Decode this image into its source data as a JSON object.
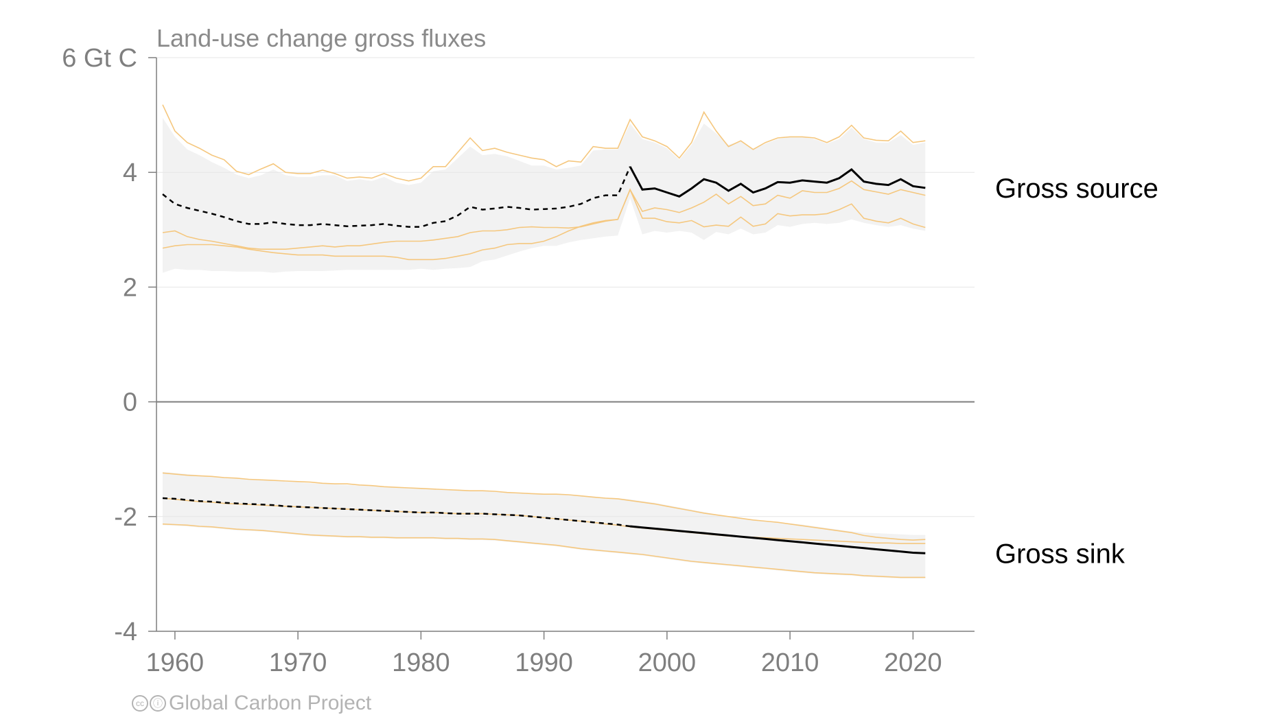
{
  "chart_data": {
    "type": "line",
    "title": "Land-use change gross fluxes",
    "ylabel": "",
    "xlabel": "",
    "ylim": [
      -4,
      6
    ],
    "xlim": [
      1958.5,
      2025
    ],
    "xticks": [
      1960,
      1970,
      1980,
      1990,
      2000,
      2010,
      2020
    ],
    "ytick_labels": [
      {
        "value": 6,
        "label": "6 Gt C"
      },
      {
        "value": 4,
        "label": "4"
      },
      {
        "value": 2,
        "label": "2"
      },
      {
        "value": 0,
        "label": "0"
      },
      {
        "value": -2,
        "label": "-2"
      },
      {
        "value": -4,
        "label": "-4"
      }
    ],
    "grid": true,
    "colors": {
      "mean": "#000000",
      "model": "#f5c77e",
      "band": "#f2f2f2",
      "axis": "#7f7f7f",
      "grid": "#e6e6e6"
    },
    "projection_until": 1997,
    "series": [
      {
        "name": "Gross source",
        "x_start": 1959,
        "mean": [
          3.62,
          3.45,
          3.38,
          3.33,
          3.28,
          3.22,
          3.15,
          3.1,
          3.1,
          3.13,
          3.1,
          3.08,
          3.08,
          3.1,
          3.08,
          3.06,
          3.07,
          3.08,
          3.1,
          3.07,
          3.05,
          3.05,
          3.12,
          3.15,
          3.25,
          3.4,
          3.35,
          3.37,
          3.4,
          3.38,
          3.35,
          3.36,
          3.37,
          3.4,
          3.45,
          3.55,
          3.6,
          3.6,
          4.1,
          3.7,
          3.72,
          3.65,
          3.58,
          3.72,
          3.88,
          3.82,
          3.68,
          3.8,
          3.65,
          3.72,
          3.83,
          3.82,
          3.86,
          3.84,
          3.82,
          3.9,
          4.05,
          3.84,
          3.8,
          3.78,
          3.88,
          3.76,
          3.73
        ],
        "band_upper": [
          4.95,
          4.62,
          4.4,
          4.3,
          4.18,
          4.08,
          3.96,
          3.9,
          3.95,
          4.05,
          3.95,
          3.92,
          3.92,
          3.95,
          3.95,
          3.85,
          3.88,
          3.85,
          3.92,
          3.82,
          3.78,
          3.82,
          4.02,
          4.05,
          4.25,
          4.45,
          4.3,
          4.32,
          4.28,
          4.2,
          4.12,
          4.12,
          4.05,
          4.08,
          4.12,
          4.38,
          4.4,
          4.4,
          4.85,
          4.58,
          4.52,
          4.42,
          4.22,
          4.48,
          4.85,
          4.68,
          4.48,
          4.55,
          4.4,
          4.5,
          4.58,
          4.62,
          4.62,
          4.58,
          4.5,
          4.58,
          4.78,
          4.58,
          4.52,
          4.52,
          4.65,
          4.48,
          4.52
        ],
        "band_lower": [
          2.25,
          2.32,
          2.3,
          2.3,
          2.28,
          2.28,
          2.27,
          2.27,
          2.27,
          2.25,
          2.27,
          2.28,
          2.28,
          2.28,
          2.29,
          2.3,
          2.3,
          2.3,
          2.3,
          2.3,
          2.3,
          2.32,
          2.3,
          2.32,
          2.33,
          2.35,
          2.45,
          2.48,
          2.55,
          2.62,
          2.68,
          2.72,
          2.72,
          2.78,
          2.82,
          2.85,
          2.88,
          2.9,
          3.55,
          2.92,
          2.98,
          2.95,
          2.98,
          2.95,
          2.82,
          2.96,
          2.92,
          3.02,
          2.92,
          2.95,
          3.08,
          3.05,
          3.1,
          3.12,
          3.1,
          3.12,
          3.18,
          3.12,
          3.08,
          3.05,
          3.08,
          3.02,
          2.98
        ],
        "models": [
          [
            5.18,
            4.72,
            4.52,
            4.42,
            4.3,
            4.22,
            4.02,
            3.96,
            4.06,
            4.15,
            4.0,
            3.98,
            3.98,
            4.04,
            3.98,
            3.9,
            3.92,
            3.9,
            3.98,
            3.9,
            3.85,
            3.9,
            4.1,
            4.1,
            4.35,
            4.6,
            4.38,
            4.42,
            4.35,
            4.3,
            4.25,
            4.22,
            4.1,
            4.2,
            4.18,
            4.45,
            4.42,
            4.42,
            4.92,
            4.62,
            4.55,
            4.45,
            4.25,
            4.52,
            5.05,
            4.72,
            4.45,
            4.55,
            4.4,
            4.52,
            4.6,
            4.62,
            4.62,
            4.6,
            4.52,
            4.62,
            4.82,
            4.6,
            4.56,
            4.55,
            4.72,
            4.52,
            4.55
          ],
          [
            2.95,
            2.98,
            2.88,
            2.83,
            2.8,
            2.76,
            2.72,
            2.68,
            2.66,
            2.66,
            2.66,
            2.68,
            2.7,
            2.72,
            2.7,
            2.72,
            2.72,
            2.75,
            2.78,
            2.8,
            2.8,
            2.8,
            2.82,
            2.85,
            2.88,
            2.95,
            2.98,
            2.98,
            3.0,
            3.04,
            3.05,
            3.04,
            3.04,
            3.03,
            3.05,
            3.1,
            3.15,
            3.18,
            3.7,
            3.32,
            3.38,
            3.35,
            3.3,
            3.38,
            3.48,
            3.62,
            3.45,
            3.58,
            3.42,
            3.45,
            3.6,
            3.55,
            3.68,
            3.65,
            3.65,
            3.72,
            3.85,
            3.7,
            3.66,
            3.62,
            3.7,
            3.65,
            3.6
          ],
          [
            2.68,
            2.72,
            2.74,
            2.74,
            2.74,
            2.72,
            2.7,
            2.66,
            2.63,
            2.6,
            2.58,
            2.56,
            2.56,
            2.56,
            2.54,
            2.54,
            2.54,
            2.54,
            2.54,
            2.52,
            2.48,
            2.48,
            2.48,
            2.5,
            2.54,
            2.58,
            2.65,
            2.68,
            2.74,
            2.76,
            2.76,
            2.8,
            2.88,
            2.98,
            3.06,
            3.12,
            3.16,
            3.18,
            3.7,
            3.2,
            3.2,
            3.14,
            3.12,
            3.16,
            3.05,
            3.08,
            3.06,
            3.22,
            3.06,
            3.1,
            3.28,
            3.24,
            3.26,
            3.26,
            3.28,
            3.35,
            3.45,
            3.2,
            3.15,
            3.12,
            3.2,
            3.1,
            3.04
          ]
        ]
      },
      {
        "name": "Gross sink",
        "x_start": 1959,
        "mean": [
          -1.68,
          -1.69,
          -1.71,
          -1.73,
          -1.74,
          -1.76,
          -1.77,
          -1.78,
          -1.79,
          -1.8,
          -1.82,
          -1.83,
          -1.84,
          -1.85,
          -1.86,
          -1.87,
          -1.88,
          -1.89,
          -1.9,
          -1.91,
          -1.92,
          -1.93,
          -1.93,
          -1.94,
          -1.95,
          -1.95,
          -1.95,
          -1.96,
          -1.97,
          -1.98,
          -2.0,
          -2.02,
          -2.04,
          -2.06,
          -2.08,
          -2.1,
          -2.12,
          -2.14,
          -2.17,
          -2.19,
          -2.21,
          -2.23,
          -2.25,
          -2.27,
          -2.29,
          -2.31,
          -2.33,
          -2.35,
          -2.37,
          -2.39,
          -2.41,
          -2.43,
          -2.45,
          -2.47,
          -2.49,
          -2.51,
          -2.53,
          -2.55,
          -2.57,
          -2.59,
          -2.61,
          -2.63,
          -2.64
        ],
        "band_upper": [
          -1.22,
          -1.24,
          -1.26,
          -1.28,
          -1.3,
          -1.31,
          -1.33,
          -1.35,
          -1.36,
          -1.37,
          -1.39,
          -1.4,
          -1.42,
          -1.43,
          -1.44,
          -1.45,
          -1.46,
          -1.47,
          -1.48,
          -1.49,
          -1.5,
          -1.51,
          -1.52,
          -1.53,
          -1.54,
          -1.55,
          -1.55,
          -1.56,
          -1.57,
          -1.58,
          -1.59,
          -1.6,
          -1.6,
          -1.62,
          -1.63,
          -1.65,
          -1.67,
          -1.68,
          -1.7,
          -1.73,
          -1.76,
          -1.8,
          -1.84,
          -1.88,
          -1.92,
          -1.96,
          -2.0,
          -2.03,
          -2.06,
          -2.08,
          -2.1,
          -2.12,
          -2.14,
          -2.17,
          -2.2,
          -2.23,
          -2.26,
          -2.28,
          -2.29,
          -2.3,
          -2.31,
          -2.32,
          -2.32
        ],
        "band_lower": [
          -2.15,
          -2.16,
          -2.17,
          -2.19,
          -2.2,
          -2.22,
          -2.24,
          -2.25,
          -2.26,
          -2.28,
          -2.3,
          -2.32,
          -2.34,
          -2.35,
          -2.36,
          -2.37,
          -2.37,
          -2.38,
          -2.38,
          -2.39,
          -2.39,
          -2.39,
          -2.39,
          -2.4,
          -2.4,
          -2.41,
          -2.41,
          -2.42,
          -2.44,
          -2.46,
          -2.48,
          -2.5,
          -2.52,
          -2.55,
          -2.58,
          -2.6,
          -2.62,
          -2.64,
          -2.66,
          -2.68,
          -2.71,
          -2.74,
          -2.77,
          -2.8,
          -2.82,
          -2.84,
          -2.86,
          -2.88,
          -2.9,
          -2.92,
          -2.94,
          -2.96,
          -2.98,
          -3.0,
          -3.01,
          -3.02,
          -3.03,
          -3.05,
          -3.06,
          -3.07,
          -3.08,
          -3.08,
          -3.08
        ],
        "models": [
          [
            -1.24,
            -1.26,
            -1.28,
            -1.29,
            -1.3,
            -1.32,
            -1.33,
            -1.35,
            -1.36,
            -1.37,
            -1.38,
            -1.39,
            -1.4,
            -1.42,
            -1.43,
            -1.43,
            -1.45,
            -1.46,
            -1.48,
            -1.49,
            -1.5,
            -1.51,
            -1.52,
            -1.53,
            -1.54,
            -1.55,
            -1.55,
            -1.56,
            -1.58,
            -1.59,
            -1.6,
            -1.61,
            -1.61,
            -1.62,
            -1.64,
            -1.66,
            -1.68,
            -1.69,
            -1.72,
            -1.75,
            -1.78,
            -1.82,
            -1.86,
            -1.9,
            -1.94,
            -1.97,
            -2.0,
            -2.03,
            -2.06,
            -2.08,
            -2.1,
            -2.13,
            -2.16,
            -2.19,
            -2.22,
            -2.25,
            -2.28,
            -2.33,
            -2.36,
            -2.38,
            -2.4,
            -2.41,
            -2.4
          ],
          [
            -1.68,
            -1.7,
            -1.72,
            -1.74,
            -1.75,
            -1.77,
            -1.78,
            -1.79,
            -1.8,
            -1.81,
            -1.82,
            -1.83,
            -1.84,
            -1.85,
            -1.86,
            -1.87,
            -1.88,
            -1.89,
            -1.9,
            -1.91,
            -1.92,
            -1.93,
            -1.93,
            -1.94,
            -1.95,
            -1.95,
            -1.95,
            -1.96,
            -1.97,
            -1.98,
            -2.0,
            -2.02,
            -2.04,
            -2.06,
            -2.08,
            -2.1,
            -2.13,
            -2.15,
            -2.18,
            -2.2,
            -2.22,
            -2.24,
            -2.26,
            -2.28,
            -2.3,
            -2.32,
            -2.34,
            -2.35,
            -2.36,
            -2.37,
            -2.38,
            -2.39,
            -2.4,
            -2.41,
            -2.42,
            -2.43,
            -2.44,
            -2.45,
            -2.46,
            -2.46,
            -2.47,
            -2.47,
            -2.47
          ],
          [
            -2.13,
            -2.14,
            -2.15,
            -2.17,
            -2.18,
            -2.2,
            -2.22,
            -2.23,
            -2.24,
            -2.26,
            -2.28,
            -2.3,
            -2.32,
            -2.33,
            -2.34,
            -2.35,
            -2.35,
            -2.36,
            -2.36,
            -2.37,
            -2.37,
            -2.37,
            -2.37,
            -2.38,
            -2.38,
            -2.39,
            -2.39,
            -2.4,
            -2.42,
            -2.44,
            -2.46,
            -2.48,
            -2.5,
            -2.53,
            -2.56,
            -2.58,
            -2.6,
            -2.62,
            -2.64,
            -2.66,
            -2.69,
            -2.72,
            -2.75,
            -2.78,
            -2.8,
            -2.82,
            -2.84,
            -2.86,
            -2.88,
            -2.9,
            -2.92,
            -2.94,
            -2.96,
            -2.98,
            -2.99,
            -3.0,
            -3.01,
            -3.03,
            -3.04,
            -3.05,
            -3.06,
            -3.06,
            -3.06
          ]
        ]
      }
    ]
  },
  "credit": "Global Carbon Project"
}
